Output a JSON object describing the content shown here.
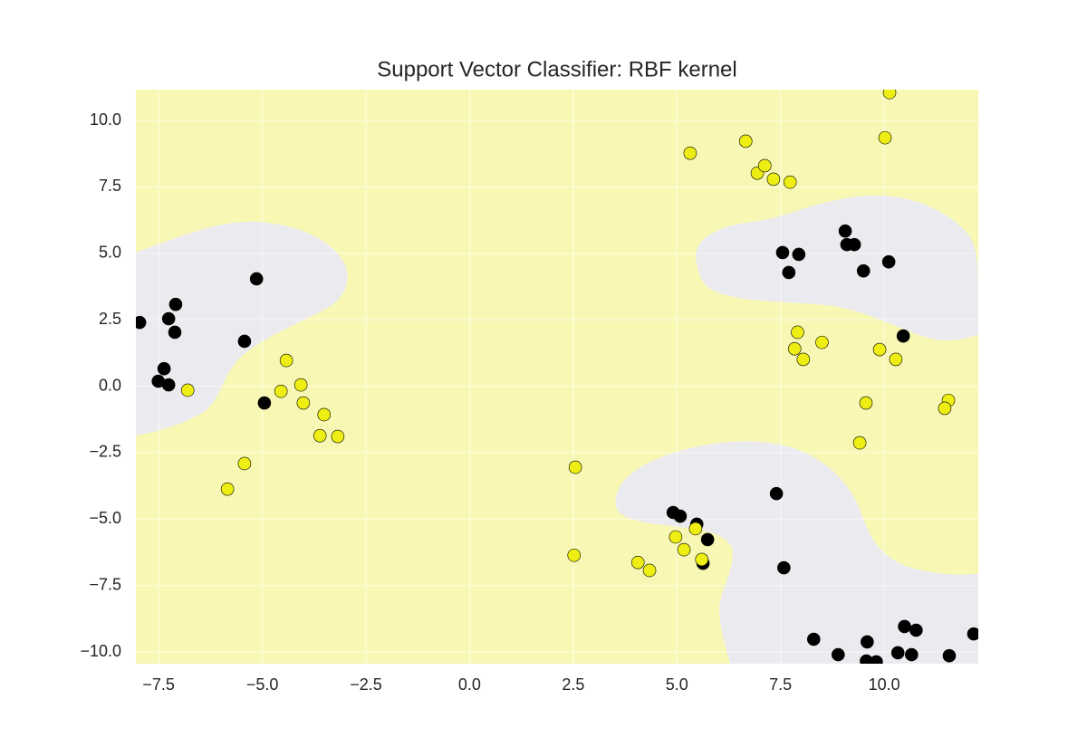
{
  "chart_data": {
    "type": "scatter",
    "title": "Support Vector Classifier: RBF kernel",
    "xlim": [
      -8.05,
      12.27
    ],
    "ylim": [
      -10.44,
      11.16
    ],
    "xticks": [
      {
        "value": -7.5,
        "label": "−7.5"
      },
      {
        "value": -5.0,
        "label": "−5.0"
      },
      {
        "value": -2.5,
        "label": "−2.5"
      },
      {
        "value": 0.0,
        "label": "0.0"
      },
      {
        "value": 2.5,
        "label": "2.5"
      },
      {
        "value": 5.0,
        "label": "5.0"
      },
      {
        "value": 7.5,
        "label": "7.5"
      },
      {
        "value": 10.0,
        "label": "10.0"
      }
    ],
    "yticks": [
      {
        "value": -10.0,
        "label": "−10.0"
      },
      {
        "value": -7.5,
        "label": "−7.5"
      },
      {
        "value": -5.0,
        "label": "−5.0"
      },
      {
        "value": -2.5,
        "label": "−2.5"
      },
      {
        "value": 0.0,
        "label": "0.0"
      },
      {
        "value": 2.5,
        "label": "2.5"
      },
      {
        "value": 5.0,
        "label": "5.0"
      },
      {
        "value": 7.5,
        "label": "7.5"
      },
      {
        "value": 10.0,
        "label": "10.0"
      }
    ],
    "grid": true,
    "series": [
      {
        "color": "#000000",
        "x": [
          -7.96,
          -7.09,
          -7.26,
          -7.11,
          -5.14,
          -5.43,
          -7.37,
          -7.51,
          -7.26,
          -4.95,
          7.55,
          7.94,
          7.7,
          9.06,
          9.1,
          9.28,
          9.5,
          10.11,
          10.46,
          7.4,
          4.91,
          5.08,
          5.48,
          5.74,
          5.63,
          7.58,
          8.3,
          8.89,
          9.59,
          9.57,
          9.81,
          10.33,
          10.49,
          10.66,
          10.77,
          11.57,
          12.16
        ],
        "y": [
          2.4,
          3.08,
          2.54,
          2.03,
          4.04,
          1.69,
          0.66,
          0.19,
          0.05,
          -0.63,
          5.03,
          4.96,
          4.28,
          5.84,
          5.33,
          5.33,
          4.34,
          4.68,
          1.89,
          -4.04,
          -4.75,
          -4.89,
          -5.19,
          -5.77,
          -6.66,
          -6.83,
          -9.52,
          -10.1,
          -9.62,
          -10.34,
          -10.37,
          -10.03,
          -9.04,
          -10.1,
          -9.18,
          -10.14,
          -9.32
        ]
      },
      {
        "color": "#eeee14",
        "x": [
          -6.8,
          -4.42,
          -4.55,
          -4.07,
          -4.01,
          -3.51,
          -3.61,
          -3.18,
          -5.43,
          -5.84,
          2.55,
          2.52,
          4.06,
          4.34,
          4.97,
          5.17,
          5.45,
          5.6,
          5.32,
          6.66,
          6.94,
          7.12,
          7.33,
          7.73,
          10.13,
          10.02,
          7.91,
          8.5,
          7.84,
          8.05,
          9.89,
          10.28,
          9.56,
          9.41,
          11.55,
          11.46
        ],
        "y": [
          -0.15,
          0.97,
          -0.19,
          0.05,
          -0.63,
          -1.07,
          -1.86,
          -1.89,
          -2.91,
          -3.87,
          -3.05,
          -6.36,
          -6.63,
          -6.93,
          -5.67,
          -6.15,
          -5.36,
          -6.52,
          8.77,
          9.22,
          8.02,
          8.3,
          7.79,
          7.68,
          11.05,
          9.35,
          2.03,
          1.65,
          1.41,
          1.01,
          1.38,
          1.01,
          -0.63,
          -2.13,
          -0.53,
          -0.83
        ]
      }
    ]
  }
}
